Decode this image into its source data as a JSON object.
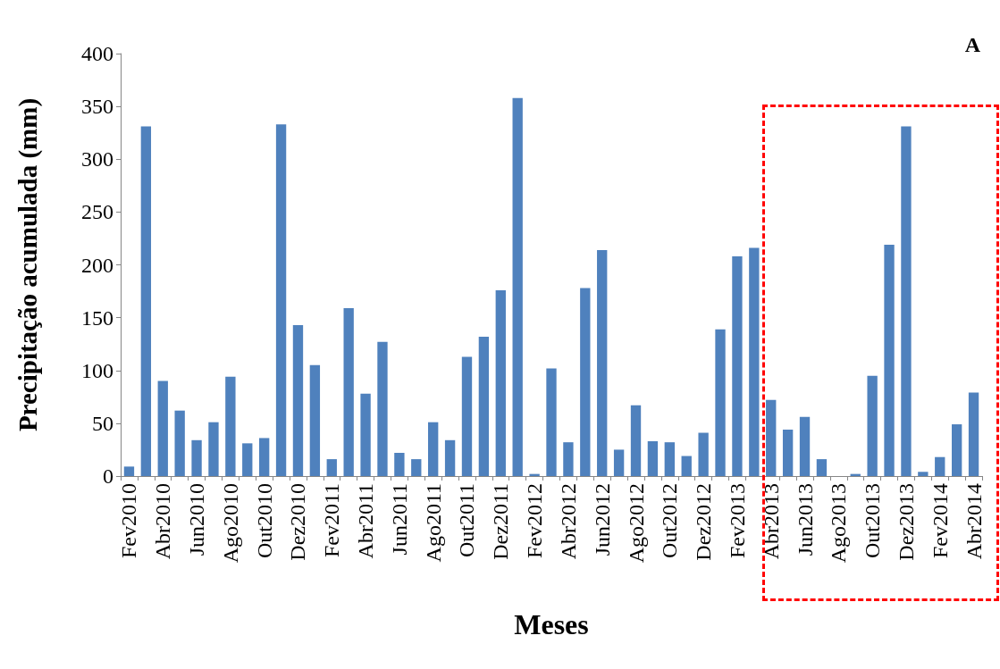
{
  "chart_data": {
    "type": "bar",
    "xlabel": "Meses",
    "ylabel": "Precipitação acumulada (mm)",
    "categories": [
      "Fev2010",
      null,
      "Abr2010",
      null,
      "Jun2010",
      null,
      "Ago2010",
      null,
      "Out2010",
      null,
      "Dez2010",
      null,
      "Fev2011",
      null,
      "Abr2011",
      null,
      "Jun2011",
      null,
      "Ago2011",
      null,
      "Out2011",
      null,
      "Dez2011",
      null,
      "Fev2012",
      null,
      "Abr2012",
      null,
      "Jun2012",
      null,
      "Ago2012",
      null,
      "Out2012",
      null,
      "Dez2012",
      null,
      "Fev2013",
      null,
      "Abr2013",
      null,
      "Jun2013",
      null,
      "Ago2013",
      null,
      "Out2013",
      null,
      "Dez2013",
      null,
      "Fev2014",
      null,
      "Abr2014"
    ],
    "values": [
      9,
      331,
      90,
      62,
      34,
      51,
      94,
      31,
      36,
      333,
      143,
      105,
      16,
      159,
      78,
      127,
      22,
      16,
      51,
      34,
      113,
      132,
      176,
      358,
      2,
      102,
      32,
      178,
      214,
      25,
      67,
      33,
      32,
      19,
      41,
      139,
      208,
      216,
      72,
      44,
      56,
      16,
      0,
      2,
      95,
      219,
      331,
      4,
      18,
      49,
      79
    ],
    "color": "#4f81bd",
    "ylim": [
      0,
      400
    ],
    "yticks": [
      0,
      50,
      100,
      150,
      200,
      250,
      300,
      350,
      400
    ],
    "grid": false,
    "annotations": [
      "A"
    ]
  }
}
